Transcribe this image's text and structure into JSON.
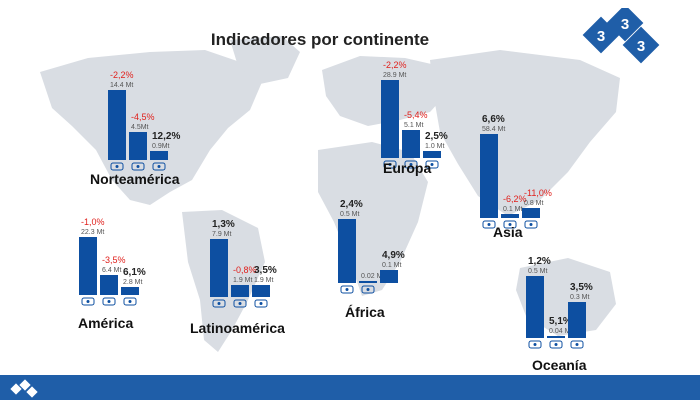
{
  "title": "Indicadores por continente",
  "colors": {
    "bar": "#0d4fa1",
    "negative": "#e0201c",
    "positive": "#222222",
    "amount": "#555555",
    "map": "#d9dde3",
    "footer": "#1f5ea8",
    "logo": "#1f5ea8"
  },
  "logo_text": "3 3 3",
  "chart_data": [
    {
      "type": "bar",
      "continent": "Norteamérica",
      "icons": [
        "meat-icon",
        "pig-icon",
        "pork-icon"
      ],
      "bars": [
        {
          "value": 14.4,
          "amount": "14.4 Mt",
          "change": "-2,2%",
          "change_value": -2.2
        },
        {
          "value": 4.5,
          "amount": "4.5Mt",
          "change": "-4,5%",
          "change_value": -4.5
        },
        {
          "value": 0.9,
          "amount": "0.9Mt",
          "change": "12,2%",
          "change_value": 12.2
        }
      ]
    },
    {
      "type": "bar",
      "continent": "Europa",
      "icons": [
        "meat-icon",
        "pig-icon",
        "pork-icon"
      ],
      "bars": [
        {
          "value": 28.9,
          "amount": "28.9 Mt",
          "change": "-2,2%",
          "change_value": -2.2
        },
        {
          "value": 5.1,
          "amount": "5.1 Mt",
          "change": "-5,4%",
          "change_value": -5.4
        },
        {
          "value": 1.0,
          "amount": "1.0 Mt",
          "change": "2,5%",
          "change_value": 2.5
        }
      ]
    },
    {
      "type": "bar",
      "continent": "Asia",
      "icons": [
        "meat-icon",
        "pig-icon",
        "pork-icon"
      ],
      "bars": [
        {
          "value": 58.4,
          "amount": "58.4 Mt",
          "change": "6,6%",
          "change_value": 6.6
        },
        {
          "value": 0.1,
          "amount": "0.1 Mt",
          "change": "-6,2%",
          "change_value": -6.2
        },
        {
          "value": 0.8,
          "amount": "0.8 Mt",
          "change": "-11,0%",
          "change_value": -11.0
        }
      ]
    },
    {
      "type": "bar",
      "continent": "América",
      "icons": [
        "meat-icon",
        "pig-icon",
        "pork-icon"
      ],
      "bars": [
        {
          "value": 22.3,
          "amount": "22.3 Mt",
          "change": "-1,0%",
          "change_value": -1.0
        },
        {
          "value": 6.4,
          "amount": "6.4 Mt",
          "change": "-3,5%",
          "change_value": -3.5
        },
        {
          "value": 2.8,
          "amount": "2.8 Mt",
          "change": "6,1%",
          "change_value": 6.1
        }
      ]
    },
    {
      "type": "bar",
      "continent": "Latinoamérica",
      "icons": [
        "meat-icon",
        "pig-icon",
        "pork-icon"
      ],
      "bars": [
        {
          "value": 7.9,
          "amount": "7.9 Mt",
          "change": "1,3%",
          "change_value": 1.3
        },
        {
          "value": 1.9,
          "amount": "1.9 Mt",
          "change": "-0,8%",
          "change_value": -0.8
        },
        {
          "value": 1.9,
          "amount": "1.9 Mt",
          "change": "3,5%",
          "change_value": 3.5
        }
      ]
    },
    {
      "type": "bar",
      "continent": "África",
      "icons": [
        "meat-icon",
        "pork-icon"
      ],
      "bars": [
        {
          "value": 0.5,
          "amount": "0.5 Mt",
          "change": "2,4%",
          "change_value": 2.4
        },
        {
          "value": 0.02,
          "amount": "0.02 Mt",
          "change": "",
          "change_value": null
        },
        {
          "value": 0.1,
          "amount": "0.1 Mt",
          "change": "4,9%",
          "change_value": 4.9
        }
      ]
    },
    {
      "type": "bar",
      "continent": "Oceanía",
      "icons": [
        "meat-icon",
        "pig-icon",
        "pork-icon"
      ],
      "bars": [
        {
          "value": 0.5,
          "amount": "0.5 Mt",
          "change": "1,2%",
          "change_value": 1.2
        },
        {
          "value": 0.04,
          "amount": "0.04 Mt",
          "change": "5,1%",
          "change_value": 5.1
        },
        {
          "value": 0.3,
          "amount": "0.3 Mt",
          "change": "3,5%",
          "change_value": 3.5
        }
      ]
    }
  ]
}
